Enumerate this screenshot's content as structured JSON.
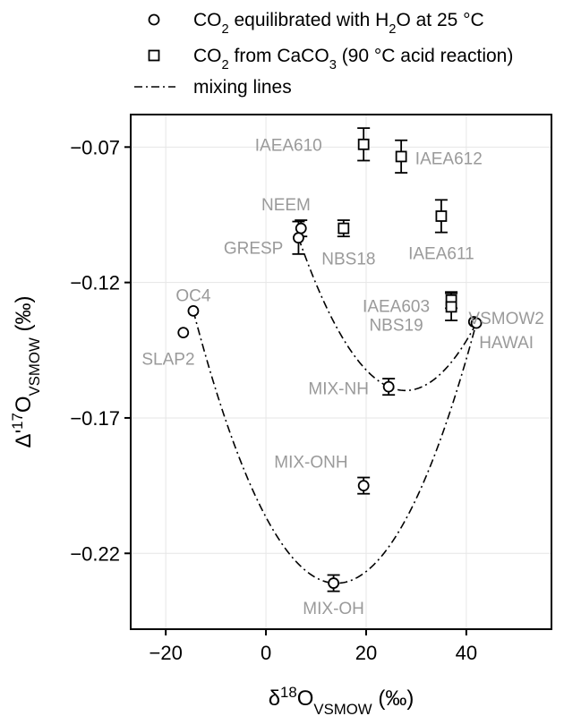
{
  "chart_data": {
    "type": "scatter",
    "xlim": [
      -27,
      57
    ],
    "ylim": [
      -0.248,
      -0.058
    ],
    "xticks": [
      -20,
      0,
      20,
      40
    ],
    "yticks": [
      -0.07,
      -0.12,
      -0.17,
      -0.22
    ],
    "xtick_labels": [
      "−20",
      "0",
      "20",
      "40"
    ],
    "ytick_labels": [
      "−0.07",
      "−0.12",
      "−0.17",
      "−0.22"
    ],
    "xlabel": {
      "main": "δ",
      "sup": "18",
      "sub": "VSMOW",
      "unit": " (‰)"
    },
    "ylabel": {
      "main": "Δ'",
      "sup": "17",
      "base": "O",
      "sub": "VSMOW",
      "unit": " (‰)"
    },
    "grid": true,
    "legend": {
      "placement": "top",
      "entries": [
        {
          "marker": "circle",
          "parts": [
            [
              "CO",
              ""
            ],
            [
              "2",
              "sub"
            ],
            [
              " equilibrated with H",
              ""
            ],
            [
              "2",
              "sub"
            ],
            [
              "O at 25 °C",
              ""
            ]
          ]
        },
        {
          "marker": "square",
          "parts": [
            [
              "CO",
              ""
            ],
            [
              "2",
              "sub"
            ],
            [
              " from CaCO",
              ""
            ],
            [
              "3",
              "sub"
            ],
            [
              " (90 °C acid reaction)",
              ""
            ]
          ]
        },
        {
          "marker": "dashdot",
          "parts": [
            [
              "mixing lines",
              ""
            ]
          ]
        }
      ]
    },
    "series": [
      {
        "name": "CO2 equilibrated with H2O at 25 °C",
        "marker": "circle",
        "points": [
          {
            "label": "OC4",
            "x": -14.5,
            "y": -0.1305,
            "err": 0
          },
          {
            "label": "SLAP2",
            "x": -16.5,
            "y": -0.1385,
            "err": 0
          },
          {
            "label": "NEEM",
            "x": 7.0,
            "y": -0.1,
            "err": 0.003
          },
          {
            "label": "GRESP",
            "x": 6.5,
            "y": -0.1035,
            "err": 0.006
          },
          {
            "label": "MIX-NH",
            "x": 24.5,
            "y": -0.1585,
            "err": 0.003
          },
          {
            "label": "MIX-ONH",
            "x": 19.5,
            "y": -0.195,
            "err": 0.003
          },
          {
            "label": "MIX-OH",
            "x": 13.5,
            "y": -0.231,
            "err": 0.003
          },
          {
            "label": "VSMOW2",
            "x": 41.5,
            "y": -0.1345,
            "err": 0
          },
          {
            "label": "HAWAI",
            "x": 42.0,
            "y": -0.135,
            "err": 0
          }
        ]
      },
      {
        "name": "CO2 from CaCO3 (90 °C acid reaction)",
        "marker": "square",
        "points": [
          {
            "label": "IAEA610",
            "x": 19.5,
            "y": -0.069,
            "err": 0.006
          },
          {
            "label": "IAEA612",
            "x": 27.0,
            "y": -0.0735,
            "err": 0.006
          },
          {
            "label": "IAEA611",
            "x": 35.0,
            "y": -0.0955,
            "err": 0.006
          },
          {
            "label": "NBS18",
            "x": 15.5,
            "y": -0.1,
            "err": 0.003
          },
          {
            "label": "IAEA603",
            "x": 37.0,
            "y": -0.1265,
            "err": 0.003
          },
          {
            "label": "NBS19",
            "x": 37.0,
            "y": -0.129,
            "err": 0.005
          }
        ]
      }
    ],
    "mixing_lines": [
      {
        "endpoints": [
          "OC4",
          "HAWAI"
        ],
        "through": "MIX-OH"
      },
      {
        "endpoints": [
          "GRESP",
          "HAWAI"
        ],
        "through": "MIX-NH"
      }
    ],
    "point_labels": [
      {
        "text": "IAEA610",
        "x": 4.5,
        "y": -0.069
      },
      {
        "text": "IAEA612",
        "x": 36.5,
        "y": -0.074
      },
      {
        "text": "NEEM",
        "x": 4.0,
        "y": -0.091
      },
      {
        "text": "GRESP",
        "x": -2.5,
        "y": -0.107
      },
      {
        "text": "NBS18",
        "x": 16.5,
        "y": -0.111
      },
      {
        "text": "IAEA611",
        "x": 35.0,
        "y": -0.109
      },
      {
        "text": "OC4",
        "x": -14.5,
        "y": -0.1245
      },
      {
        "text": "IAEA603",
        "x": 26.0,
        "y": -0.1285
      },
      {
        "text": "VSMOW2",
        "x": 48.0,
        "y": -0.133
      },
      {
        "text": "NBS19",
        "x": 26.0,
        "y": -0.1355
      },
      {
        "text": "SLAP2",
        "x": -19.5,
        "y": -0.148
      },
      {
        "text": "HAWAI",
        "x": 48.0,
        "y": -0.142
      },
      {
        "text": "MIX-NH",
        "x": 14.5,
        "y": -0.159
      },
      {
        "text": "MIX-ONH",
        "x": 9.0,
        "y": -0.186
      },
      {
        "text": "MIX-OH",
        "x": 13.5,
        "y": -0.24
      }
    ]
  }
}
